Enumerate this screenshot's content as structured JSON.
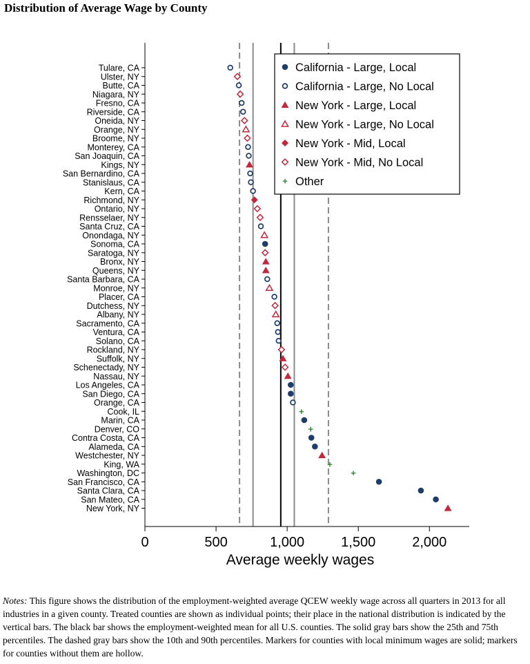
{
  "title": "Distribution of Average Wage by County",
  "notes": {
    "label": "Notes:",
    "text": "This figure shows the distribution of the employment-weighted average QCEW weekly wage across all quarters in 2013 for all industries in a given county. Treated counties are shown as individual points; their place in the national distribution is indicated by the vertical bars. The black bar shows the employment-weighted mean for all U.S. counties. The solid gray bars show the 25th and 75th percentiles. The dashed gray bars show the 10th and 90th percentiles. Markers for counties with local minimum wages are solid; markers for counties without them are hollow."
  },
  "colors": {
    "california": "#1f3d6b",
    "new_york": "#c0283c",
    "other": "#2e8b2e",
    "gray": "#8a8a8a",
    "mean": "#000000"
  },
  "chart_data": {
    "type": "scatter",
    "title": "Distribution of Average Wage by County",
    "xlabel": "Average weekly wages",
    "ylabel": "",
    "xlim": [
      0,
      2280
    ],
    "xticks": [
      0,
      500,
      1000,
      1500,
      2000
    ],
    "xtick_labels": [
      "0",
      "500",
      "1,000",
      "1,500",
      "2,000"
    ],
    "reference_lines": [
      {
        "name": "10th percentile",
        "value": 665,
        "style": "dashed-gray"
      },
      {
        "name": "25th percentile",
        "value": 760,
        "style": "solid-gray"
      },
      {
        "name": "Employment-weighted mean",
        "value": 955,
        "style": "solid-black"
      },
      {
        "name": "75th percentile",
        "value": 1050,
        "style": "solid-gray"
      },
      {
        "name": "90th percentile",
        "value": 1290,
        "style": "dashed-gray"
      }
    ],
    "legend": [
      {
        "key": "ca_local",
        "label": "California - Large, Local"
      },
      {
        "key": "ca_nolocal",
        "label": "California - Large, No Local"
      },
      {
        "key": "ny_local",
        "label": "New York - Large, Local"
      },
      {
        "key": "ny_nolocal",
        "label": "New York - Large, No Local"
      },
      {
        "key": "nym_local",
        "label": "New York - Mid, Local"
      },
      {
        "key": "nym_nolocal",
        "label": "New York - Mid, No Local"
      },
      {
        "key": "other",
        "label": "Other"
      }
    ],
    "legend_position": "top-right",
    "counties": [
      {
        "name": "Tulare, CA",
        "value": 600,
        "group": "ca_nolocal"
      },
      {
        "name": "Ulster, NY",
        "value": 650,
        "group": "nym_nolocal"
      },
      {
        "name": "Butte, CA",
        "value": 660,
        "group": "ca_nolocal"
      },
      {
        "name": "Niagara, NY",
        "value": 670,
        "group": "nym_nolocal"
      },
      {
        "name": "Fresno, CA",
        "value": 680,
        "group": "ca_nolocal"
      },
      {
        "name": "Riverside, CA",
        "value": 690,
        "group": "ca_nolocal"
      },
      {
        "name": "Oneida, NY",
        "value": 700,
        "group": "nym_nolocal"
      },
      {
        "name": "Orange, NY",
        "value": 710,
        "group": "ny_nolocal"
      },
      {
        "name": "Broome, NY",
        "value": 720,
        "group": "nym_nolocal"
      },
      {
        "name": "Monterey, CA",
        "value": 725,
        "group": "ca_nolocal"
      },
      {
        "name": "San Joaquin, CA",
        "value": 730,
        "group": "ca_nolocal"
      },
      {
        "name": "Kings, NY",
        "value": 735,
        "group": "ny_local"
      },
      {
        "name": "San Bernardino, CA",
        "value": 740,
        "group": "ca_nolocal"
      },
      {
        "name": "Stanislaus, CA",
        "value": 745,
        "group": "ca_nolocal"
      },
      {
        "name": "Kern, CA",
        "value": 760,
        "group": "ca_nolocal"
      },
      {
        "name": "Richmond, NY",
        "value": 770,
        "group": "nym_local"
      },
      {
        "name": "Ontario, NY",
        "value": 790,
        "group": "nym_nolocal"
      },
      {
        "name": "Rensselaer, NY",
        "value": 810,
        "group": "nym_nolocal"
      },
      {
        "name": "Santa Cruz, CA",
        "value": 815,
        "group": "ca_nolocal"
      },
      {
        "name": "Onondaga, NY",
        "value": 840,
        "group": "ny_nolocal"
      },
      {
        "name": "Sonoma, CA",
        "value": 845,
        "group": "ca_local"
      },
      {
        "name": "Saratoga, NY",
        "value": 845,
        "group": "nym_nolocal"
      },
      {
        "name": "Bronx, NY",
        "value": 850,
        "group": "ny_local"
      },
      {
        "name": "Queens, NY",
        "value": 850,
        "group": "ny_local"
      },
      {
        "name": "Santa Barbara, CA",
        "value": 860,
        "group": "ca_nolocal"
      },
      {
        "name": "Monroe, NY",
        "value": 875,
        "group": "ny_nolocal"
      },
      {
        "name": "Placer, CA",
        "value": 910,
        "group": "ca_nolocal"
      },
      {
        "name": "Dutchess, NY",
        "value": 915,
        "group": "nym_nolocal"
      },
      {
        "name": "Albany, NY",
        "value": 920,
        "group": "ny_nolocal"
      },
      {
        "name": "Sacramento, CA",
        "value": 930,
        "group": "ca_nolocal"
      },
      {
        "name": "Ventura, CA",
        "value": 935,
        "group": "ca_nolocal"
      },
      {
        "name": "Solano, CA",
        "value": 940,
        "group": "ca_nolocal"
      },
      {
        "name": "Rockland, NY",
        "value": 960,
        "group": "nym_nolocal"
      },
      {
        "name": "Suffolk, NY",
        "value": 970,
        "group": "ny_local"
      },
      {
        "name": "Schenectady, NY",
        "value": 985,
        "group": "nym_nolocal"
      },
      {
        "name": "Nassau, NY",
        "value": 1005,
        "group": "ny_local"
      },
      {
        "name": "Los Angeles, CA",
        "value": 1025,
        "group": "ca_local"
      },
      {
        "name": "San Diego, CA",
        "value": 1025,
        "group": "ca_local"
      },
      {
        "name": "Orange, CA",
        "value": 1040,
        "group": "ca_nolocal"
      },
      {
        "name": "Cook, IL",
        "value": 1100,
        "group": "other"
      },
      {
        "name": "Marin, CA",
        "value": 1120,
        "group": "ca_local"
      },
      {
        "name": "Denver, CO",
        "value": 1165,
        "group": "other"
      },
      {
        "name": "Contra Costa, CA",
        "value": 1170,
        "group": "ca_local"
      },
      {
        "name": "Alameda, CA",
        "value": 1195,
        "group": "ca_local"
      },
      {
        "name": "Westchester, NY",
        "value": 1245,
        "group": "ny_local"
      },
      {
        "name": "King, WA",
        "value": 1300,
        "group": "other"
      },
      {
        "name": "Washington, DC",
        "value": 1465,
        "group": "other"
      },
      {
        "name": "San Francisco, CA",
        "value": 1645,
        "group": "ca_local"
      },
      {
        "name": "Santa Clara, CA",
        "value": 1940,
        "group": "ca_local"
      },
      {
        "name": "San Mateo, CA",
        "value": 2045,
        "group": "ca_local"
      },
      {
        "name": "New York, NY",
        "value": 2130,
        "group": "ny_local"
      }
    ]
  }
}
